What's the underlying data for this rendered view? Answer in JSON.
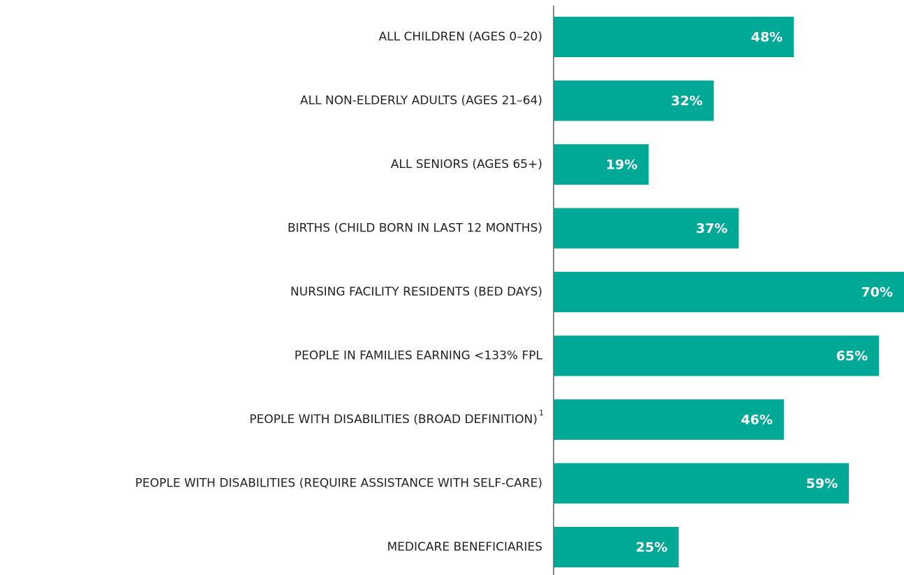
{
  "chart_data": {
    "type": "hbar",
    "categories": [
      "ALL CHILDREN (AGES 0–20)",
      "ALL NON-ELDERLY ADULTS (AGES 21–64)",
      "ALL SENIORS (AGES 65+)",
      "BIRTHS (CHILD BORN IN LAST 12 MONTHS)",
      "NURSING FACILITY RESIDENTS (BED DAYS)",
      "PEOPLE IN FAMILIES EARNING <133% FPL",
      "PEOPLE WITH DISABILITIES (BROAD DEFINITION)",
      "PEOPLE WITH DISABILITIES (REQUIRE ASSISTANCE WITH SELF-CARE)",
      "MEDICARE BENEFICIARIES"
    ],
    "category_notes": [
      null,
      null,
      null,
      null,
      null,
      null,
      "1",
      null,
      null
    ],
    "values": [
      48,
      32,
      19,
      37,
      70,
      65,
      46,
      59,
      25
    ],
    "value_labels": [
      "48%",
      "32%",
      "19%",
      "37%",
      "70%",
      "65%",
      "46%",
      "59%",
      "25%"
    ],
    "color": "#00a896",
    "xlim": [
      0,
      70
    ]
  }
}
